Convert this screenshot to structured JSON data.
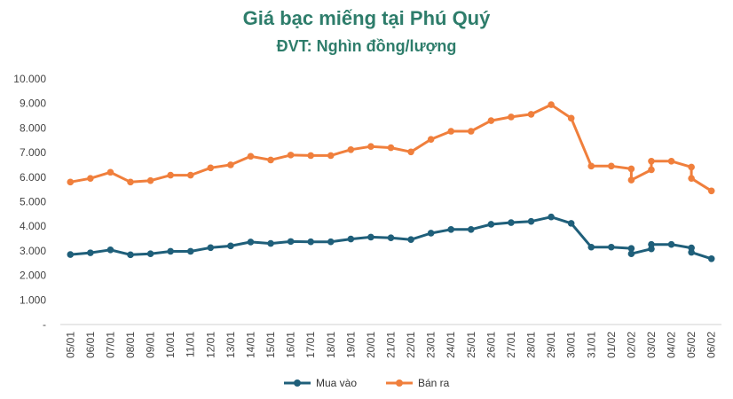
{
  "chart_data": {
    "type": "line",
    "title": "Giá bạc miếng tại Phú Quý",
    "subtitle": "ĐVT: Nghìn đồng/lượng",
    "ylim": [
      0,
      10000
    ],
    "y_ticks": [
      "-",
      "1.000",
      "2.000",
      "3.000",
      "4.000",
      "5.000",
      "6.000",
      "7.000",
      "8.000",
      "9.000",
      "10.000"
    ],
    "x_ticks": [
      "05/01",
      "06/01",
      "07/01",
      "08/01",
      "09/01",
      "10/01",
      "11/01",
      "12/01",
      "13/01",
      "14/01",
      "15/01",
      "16/01",
      "17/01",
      "18/01",
      "19/01",
      "20/01",
      "21/01",
      "22/01",
      "23/01",
      "24/01",
      "25/01",
      "26/01",
      "27/01",
      "28/01",
      "29/01",
      "30/01",
      "31/01",
      "01/02",
      "02/02",
      "03/02",
      "04/02",
      "05/02",
      "06/02"
    ],
    "legend_position": "bottom",
    "grid": false,
    "x": [
      0,
      1,
      2,
      3,
      4,
      5,
      6,
      7,
      8,
      9,
      10,
      11,
      12,
      13,
      14,
      15,
      16,
      17,
      18,
      19,
      20,
      21,
      22,
      23,
      24,
      25,
      26,
      27,
      28,
      28,
      29,
      29,
      30,
      31,
      31,
      32
    ],
    "series": [
      {
        "name": "Mua vào",
        "color": "#1f5f7a",
        "values": [
          2850,
          2920,
          3040,
          2840,
          2880,
          2980,
          2980,
          3130,
          3200,
          3360,
          3300,
          3380,
          3370,
          3370,
          3480,
          3560,
          3530,
          3460,
          3720,
          3870,
          3870,
          4080,
          4150,
          4200,
          4380,
          4120,
          3150,
          3150,
          3100,
          2880,
          3080,
          3260,
          3260,
          3120,
          2940,
          2680
        ]
      },
      {
        "name": "Bán ra",
        "color": "#f07f3c",
        "values": [
          5800,
          5950,
          6200,
          5800,
          5860,
          6080,
          6080,
          6380,
          6500,
          6850,
          6700,
          6900,
          6880,
          6880,
          7120,
          7250,
          7200,
          7030,
          7540,
          7870,
          7870,
          8300,
          8450,
          8560,
          8950,
          8400,
          6450,
          6450,
          6340,
          5880,
          6300,
          6650,
          6650,
          6410,
          5950,
          5440
        ]
      }
    ]
  }
}
